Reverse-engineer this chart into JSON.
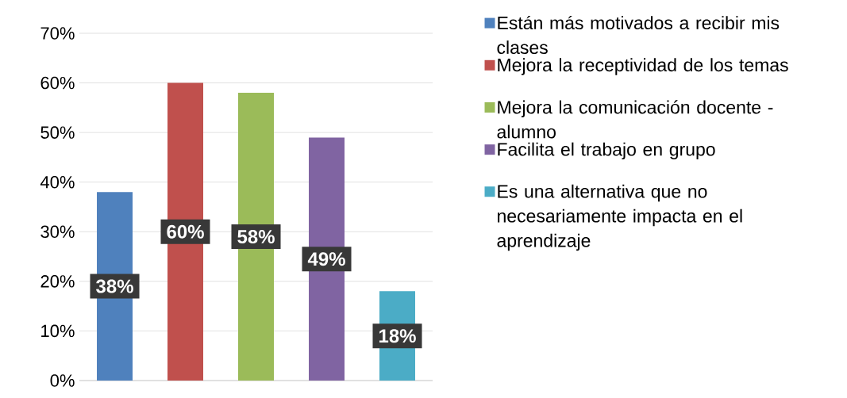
{
  "chart_data": {
    "type": "bar",
    "categories": [
      null,
      null,
      null,
      null,
      null
    ],
    "series": [
      {
        "name": "Están más motivados a recibir mis clases",
        "color": "#4f81bd",
        "values": [
          38,
          null,
          null,
          null,
          null
        ],
        "value_labels": [
          "38%",
          null,
          null,
          null,
          null
        ]
      },
      {
        "name": "Mejora la receptividad de los temas",
        "color": "#c0504d",
        "values": [
          null,
          60,
          null,
          null,
          null
        ],
        "value_labels": [
          null,
          "60%",
          null,
          null,
          null
        ]
      },
      {
        "name": "Mejora la comunicación docente - alumno",
        "color": "#9bbb59",
        "values": [
          null,
          null,
          58,
          null,
          null
        ],
        "value_labels": [
          null,
          null,
          "58%",
          null,
          null
        ]
      },
      {
        "name": "Facilita el trabajo en grupo",
        "color": "#8064a2",
        "values": [
          null,
          null,
          null,
          49,
          null
        ],
        "value_labels": [
          null,
          null,
          null,
          "49%",
          null
        ]
      },
      {
        "name": "Es una alternativa que no necesariamente impacta en el aprendizaje",
        "color": "#4bacc6",
        "values": [
          null,
          null,
          null,
          null,
          18
        ],
        "value_labels": [
          null,
          null,
          null,
          null,
          "18%"
        ]
      }
    ],
    "ylim": [
      0,
      70
    ],
    "yticks": [
      {
        "value": 0,
        "label": "0%"
      },
      {
        "value": 10,
        "label": "10%"
      },
      {
        "value": 20,
        "label": "20%"
      },
      {
        "value": 30,
        "label": "30%"
      },
      {
        "value": 40,
        "label": "40%"
      },
      {
        "value": 50,
        "label": "50%"
      },
      {
        "value": 60,
        "label": "60%"
      },
      {
        "value": 70,
        "label": "70%"
      }
    ],
    "grid": "y",
    "legend": "right"
  }
}
